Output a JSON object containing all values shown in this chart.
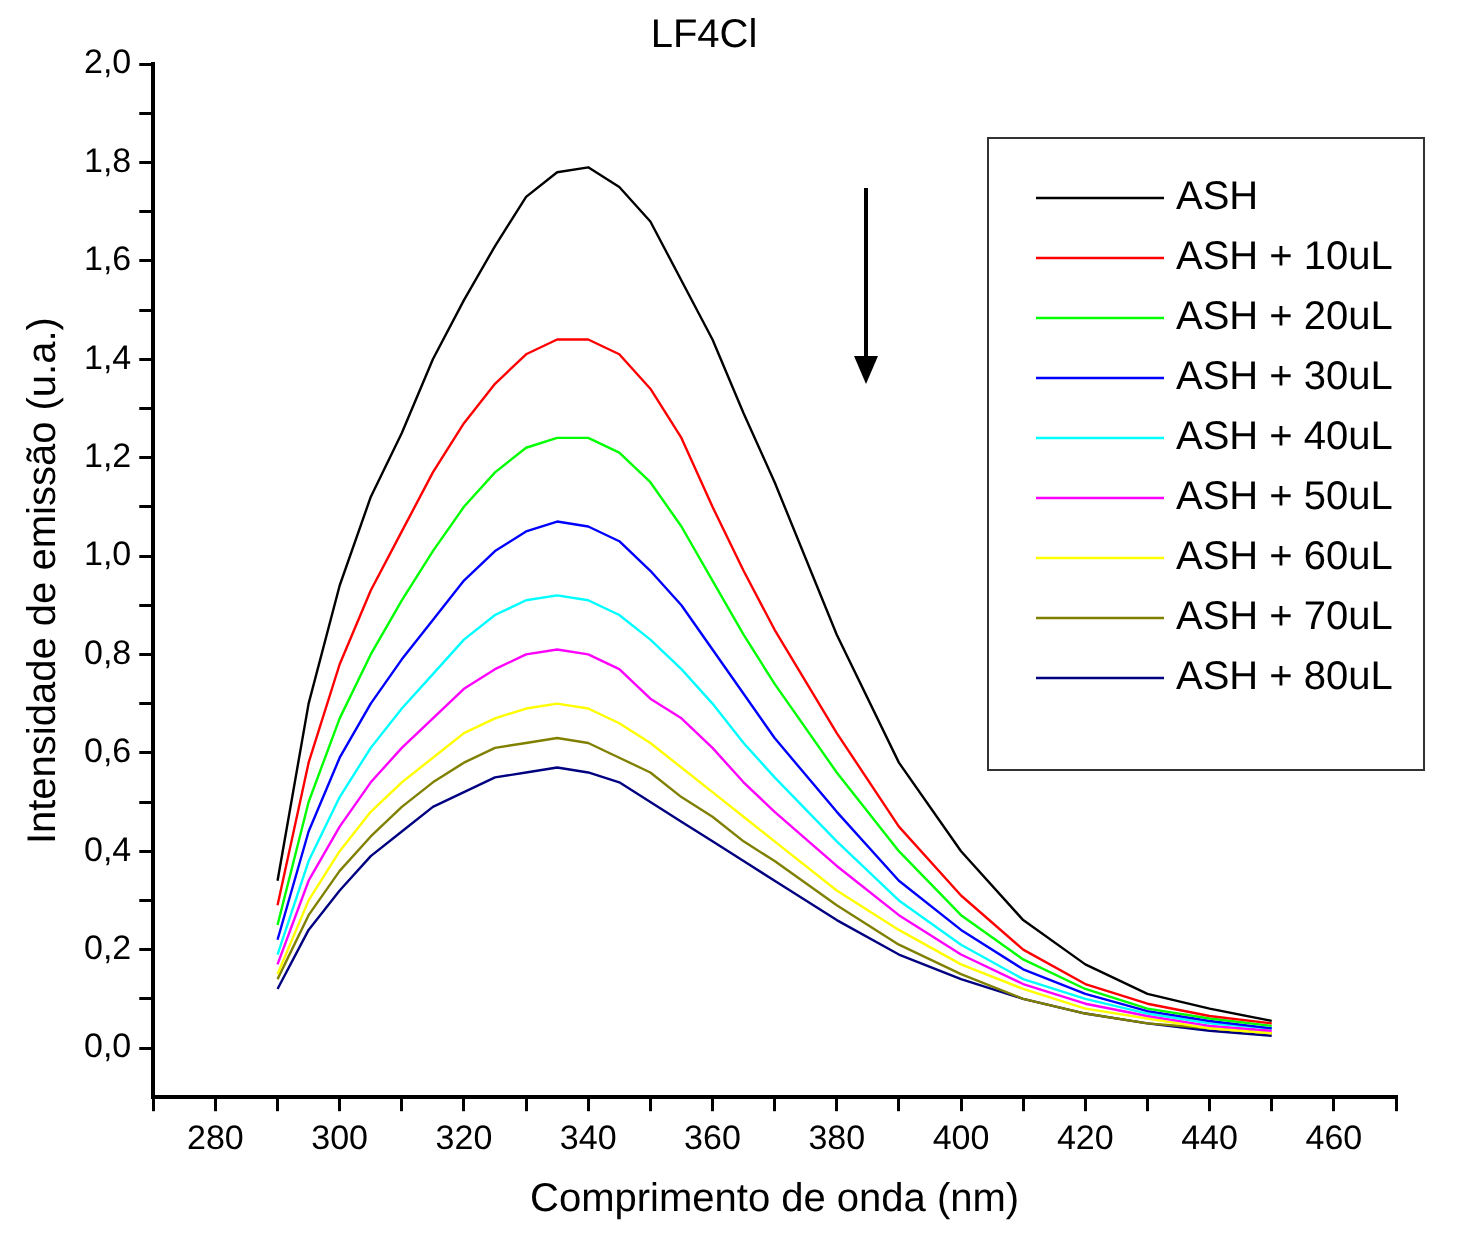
{
  "chart_data": {
    "type": "line",
    "title": "LF4Cl",
    "xlabel": "Comprimento de onda (nm)",
    "ylabel": "Intensidade de emissão (u.a.)",
    "x": [
      290,
      295,
      300,
      305,
      310,
      315,
      320,
      325,
      330,
      335,
      340,
      345,
      350,
      355,
      360,
      365,
      370,
      380,
      390,
      400,
      410,
      420,
      430,
      440,
      450
    ],
    "series": [
      {
        "name": "ASH",
        "color": "#000000",
        "values": [
          0.34,
          0.7,
          0.94,
          1.12,
          1.25,
          1.4,
          1.52,
          1.63,
          1.73,
          1.78,
          1.79,
          1.75,
          1.68,
          1.56,
          1.44,
          1.29,
          1.15,
          0.84,
          0.58,
          0.4,
          0.26,
          0.17,
          0.11,
          0.08,
          0.055
        ]
      },
      {
        "name": "ASH + 10uL",
        "color": "#ff0000",
        "values": [
          0.29,
          0.58,
          0.78,
          0.93,
          1.05,
          1.17,
          1.27,
          1.35,
          1.41,
          1.44,
          1.44,
          1.41,
          1.34,
          1.24,
          1.1,
          0.97,
          0.85,
          0.64,
          0.45,
          0.31,
          0.2,
          0.13,
          0.09,
          0.065,
          0.05
        ]
      },
      {
        "name": "ASH + 20uL",
        "color": "#00ff00",
        "values": [
          0.25,
          0.5,
          0.67,
          0.8,
          0.91,
          1.01,
          1.1,
          1.17,
          1.22,
          1.24,
          1.24,
          1.21,
          1.15,
          1.06,
          0.95,
          0.84,
          0.74,
          0.56,
          0.4,
          0.27,
          0.18,
          0.12,
          0.08,
          0.06,
          0.045
        ]
      },
      {
        "name": "ASH + 30uL",
        "color": "#0000ff",
        "values": [
          0.22,
          0.44,
          0.59,
          0.7,
          0.79,
          0.87,
          0.95,
          1.01,
          1.05,
          1.07,
          1.06,
          1.03,
          0.97,
          0.9,
          0.81,
          0.72,
          0.63,
          0.48,
          0.34,
          0.24,
          0.16,
          0.11,
          0.075,
          0.055,
          0.04
        ]
      },
      {
        "name": "ASH + 40uL",
        "color": "#00ffff",
        "values": [
          0.19,
          0.38,
          0.51,
          0.61,
          0.69,
          0.76,
          0.83,
          0.88,
          0.91,
          0.92,
          0.91,
          0.88,
          0.83,
          0.77,
          0.7,
          0.62,
          0.55,
          0.42,
          0.3,
          0.21,
          0.14,
          0.1,
          0.07,
          0.05,
          0.04
        ]
      },
      {
        "name": "ASH + 50uL",
        "color": "#ff00ff",
        "values": [
          0.17,
          0.34,
          0.45,
          0.54,
          0.61,
          0.67,
          0.73,
          0.77,
          0.8,
          0.81,
          0.8,
          0.77,
          0.71,
          0.67,
          0.61,
          0.54,
          0.48,
          0.37,
          0.27,
          0.19,
          0.13,
          0.09,
          0.065,
          0.045,
          0.035
        ]
      },
      {
        "name": "ASH + 60uL",
        "color": "#ffff00",
        "values": [
          0.15,
          0.3,
          0.4,
          0.48,
          0.54,
          0.59,
          0.64,
          0.67,
          0.69,
          0.7,
          0.69,
          0.66,
          0.62,
          0.57,
          0.52,
          0.47,
          0.42,
          0.32,
          0.24,
          0.17,
          0.12,
          0.08,
          0.06,
          0.04,
          0.03
        ]
      },
      {
        "name": "ASH + 70uL",
        "color": "#808000",
        "values": [
          0.14,
          0.27,
          0.36,
          0.43,
          0.49,
          0.54,
          0.58,
          0.61,
          0.62,
          0.63,
          0.62,
          0.59,
          0.56,
          0.51,
          0.47,
          0.42,
          0.38,
          0.29,
          0.21,
          0.15,
          0.1,
          0.07,
          0.05,
          0.04,
          0.03
        ]
      },
      {
        "name": "ASH + 80uL",
        "color": "#000080",
        "values": [
          0.12,
          0.24,
          0.32,
          0.39,
          0.44,
          0.49,
          0.52,
          0.55,
          0.56,
          0.57,
          0.56,
          0.54,
          0.5,
          0.46,
          0.42,
          0.38,
          0.34,
          0.26,
          0.19,
          0.14,
          0.1,
          0.07,
          0.05,
          0.035,
          0.025
        ]
      }
    ],
    "xlim": [
      270,
      470
    ],
    "xticks": [
      {
        "value": 270,
        "label": null
      },
      280,
      {
        "value": 290,
        "label": null
      },
      300,
      {
        "value": 310,
        "label": null
      },
      320,
      {
        "value": 330,
        "label": null
      },
      340,
      {
        "value": 350,
        "label": null
      },
      360,
      {
        "value": 370,
        "label": null
      },
      380,
      {
        "value": 390,
        "label": null
      },
      400,
      {
        "value": 410,
        "label": null
      },
      420,
      {
        "value": 430,
        "label": null
      },
      440,
      {
        "value": 450,
        "label": null
      },
      460,
      {
        "value": 470,
        "label": null
      }
    ],
    "ylim": [
      -0.1,
      2.0
    ],
    "yticks": [
      {
        "value": 0,
        "label": "0,0"
      },
      {
        "value": 0.1,
        "label": null
      },
      {
        "value": 0.2,
        "label": "0,2"
      },
      {
        "value": 0.3,
        "label": null
      },
      {
        "value": 0.4,
        "label": "0,4"
      },
      {
        "value": 0.5,
        "label": null
      },
      {
        "value": 0.6,
        "label": "0,6"
      },
      {
        "value": 0.7,
        "label": null
      },
      {
        "value": 0.8,
        "label": "0,8"
      },
      {
        "value": 0.9,
        "label": null
      },
      {
        "value": 1.0,
        "label": "1,0"
      },
      {
        "value": 1.1,
        "label": null
      },
      {
        "value": 1.2,
        "label": "1,2"
      },
      {
        "value": 1.3,
        "label": null
      },
      {
        "value": 1.4,
        "label": "1,4"
      },
      {
        "value": 1.5,
        "label": null
      },
      {
        "value": 1.6,
        "label": "1,6"
      },
      {
        "value": 1.7,
        "label": null
      },
      {
        "value": 1.8,
        "label": "1,8"
      },
      {
        "value": 1.9,
        "label": null
      },
      {
        "value": 2.0,
        "label": "2,0"
      }
    ],
    "grid": false,
    "legend": "top right",
    "marker": "none",
    "line_style": "solid"
  }
}
